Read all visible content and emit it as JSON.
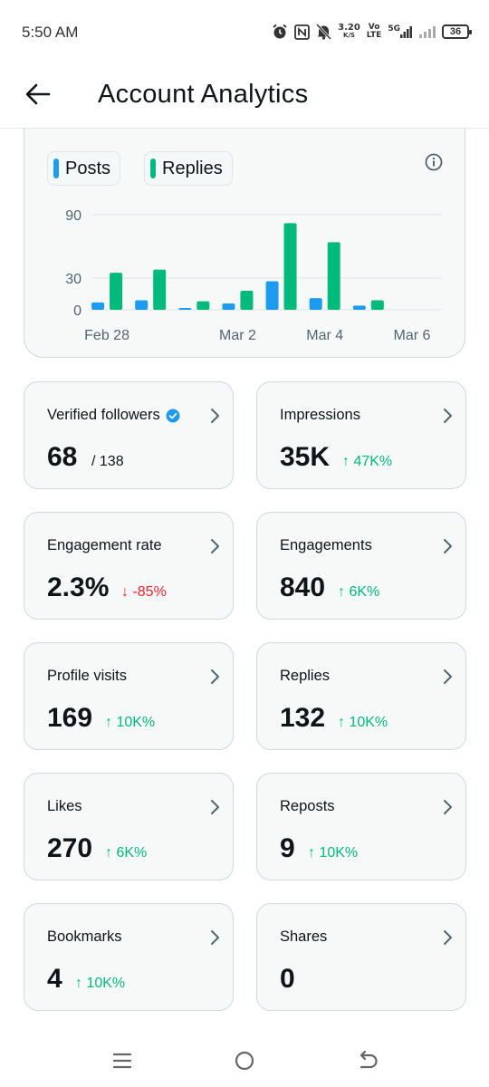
{
  "status_bar": {
    "time": "5:50 AM",
    "speed_value": "3.20",
    "speed_unit": "K/S",
    "volte_top": "Vo",
    "volte_bottom": "LTE",
    "network": "5G",
    "battery": "36",
    "icons": [
      "alarm-icon",
      "nfc-icon",
      "mute-icon",
      "signal-icon"
    ]
  },
  "header": {
    "title": "Account Analytics",
    "back_icon": "back-arrow-icon"
  },
  "chart": {
    "legend": [
      {
        "label": "Posts",
        "color": "#1d9bf0"
      },
      {
        "label": "Replies",
        "color": "#00ba7c"
      }
    ],
    "info_icon": "info-icon"
  },
  "chart_data": {
    "type": "bar",
    "title": "",
    "xlabel": "",
    "ylabel": "",
    "ylim": [
      0,
      90
    ],
    "yticks": [
      0,
      30,
      90
    ],
    "x_tick_labels": [
      "Feb 28",
      "Mar 2",
      "Mar 4",
      "Mar 6"
    ],
    "categories": [
      "Feb 28",
      "Feb 29",
      "Mar 1",
      "Mar 2",
      "Mar 3",
      "Mar 4",
      "Mar 5",
      "Mar 6"
    ],
    "series": [
      {
        "name": "Posts",
        "color": "#1d9bf0",
        "values": [
          7,
          9,
          1,
          6,
          27,
          11,
          4,
          0
        ]
      },
      {
        "name": "Replies",
        "color": "#00ba7c",
        "values": [
          35,
          38,
          8,
          18,
          82,
          64,
          9,
          0
        ]
      }
    ],
    "grid": true,
    "legend_position": "top-left"
  },
  "stats": [
    {
      "label": "Verified followers",
      "value": "68",
      "total": "/ 138",
      "change": "",
      "direction": "",
      "verified_badge": true
    },
    {
      "label": "Impressions",
      "value": "35K",
      "change": "↑ 47K%",
      "direction": "up"
    },
    {
      "label": "Engagement rate",
      "value": "2.3%",
      "change": "↓ -85%",
      "direction": "down"
    },
    {
      "label": "Engagements",
      "value": "840",
      "change": "↑ 6K%",
      "direction": "up"
    },
    {
      "label": "Profile visits",
      "value": "169",
      "change": "↑ 10K%",
      "direction": "up"
    },
    {
      "label": "Replies",
      "value": "132",
      "change": "↑ 10K%",
      "direction": "up"
    },
    {
      "label": "Likes",
      "value": "270",
      "change": "↑ 6K%",
      "direction": "up"
    },
    {
      "label": "Reposts",
      "value": "9",
      "change": "↑ 10K%",
      "direction": "up"
    },
    {
      "label": "Bookmarks",
      "value": "4",
      "change": "↑ 10K%",
      "direction": "up"
    },
    {
      "label": "Shares",
      "value": "0",
      "change": "",
      "direction": ""
    }
  ],
  "nav_bar": {
    "icons": [
      "menu-icon",
      "home-circle-icon",
      "back-icon"
    ]
  }
}
